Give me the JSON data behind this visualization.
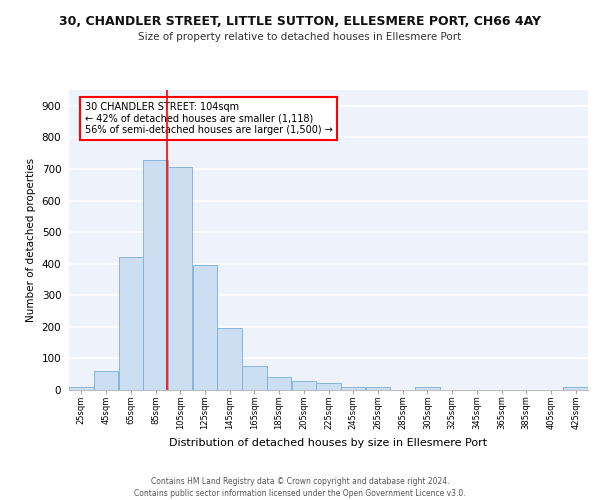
{
  "title": "30, CHANDLER STREET, LITTLE SUTTON, ELLESMERE PORT, CH66 4AY",
  "subtitle": "Size of property relative to detached houses in Ellesmere Port",
  "xlabel": "Distribution of detached houses by size in Ellesmere Port",
  "ylabel": "Number of detached properties",
  "bar_color": "#ccdff2",
  "bar_edge_color": "#7baed4",
  "background_color": "#eef2fb",
  "grid_color": "#ffffff",
  "property_line_x": 104,
  "annotation_text_line1": "30 CHANDLER STREET: 104sqm",
  "annotation_text_line2": "← 42% of detached houses are smaller (1,118)",
  "annotation_text_line3": "56% of semi-detached houses are larger (1,500) →",
  "footer_line1": "Contains HM Land Registry data © Crown copyright and database right 2024.",
  "footer_line2": "Contains public sector information licensed under the Open Government Licence v3.0.",
  "bins": [
    25,
    45,
    65,
    85,
    105,
    125,
    145,
    165,
    185,
    205,
    225,
    245,
    265,
    285,
    305,
    325,
    345,
    365,
    385,
    405,
    425,
    445
  ],
  "counts": [
    10,
    60,
    420,
    727,
    707,
    395,
    197,
    77,
    40,
    30,
    22,
    10,
    10,
    0,
    8,
    0,
    0,
    0,
    0,
    0,
    8
  ],
  "ylim": [
    0,
    950
  ],
  "yticks": [
    0,
    100,
    200,
    300,
    400,
    500,
    600,
    700,
    800,
    900
  ]
}
